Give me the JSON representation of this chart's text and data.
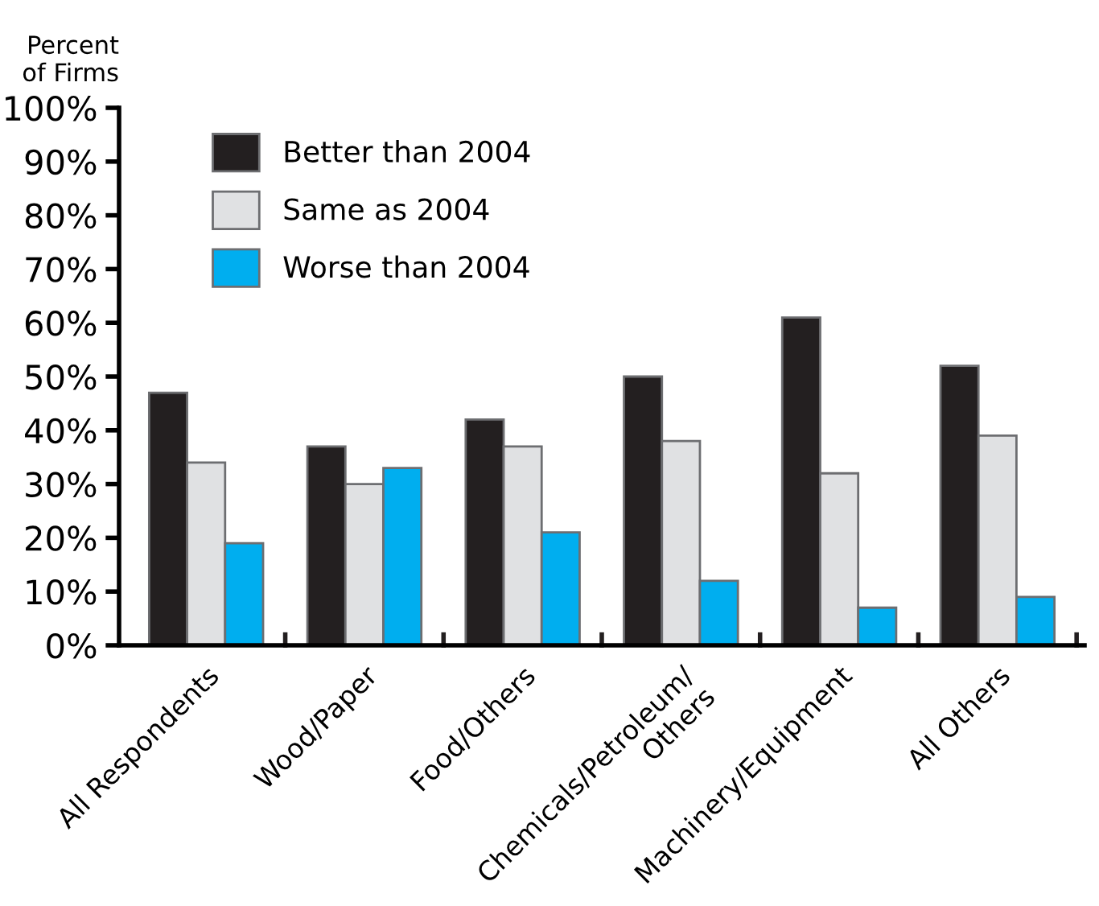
{
  "chart_data": {
    "type": "bar",
    "ylabel": "Percent\nof Firms",
    "categories": [
      "All Respondents",
      "Wood/Paper",
      "Food/Others",
      "Chemicals/Petroleum/\nOthers",
      "Machinery/Equipment",
      "All Others"
    ],
    "series": [
      {
        "name": "Better than 2004",
        "color": "#231f20",
        "values": [
          47,
          37,
          42,
          50,
          61,
          52
        ]
      },
      {
        "name": "Same as 2004",
        "color": "#e0e1e3",
        "values": [
          34,
          30,
          37,
          38,
          32,
          39
        ]
      },
      {
        "name": "Worse than 2004",
        "color": "#00aeef",
        "values": [
          19,
          33,
          21,
          12,
          7,
          9
        ]
      }
    ],
    "ylim": [
      0,
      100
    ],
    "yticks": [
      {
        "value": 0,
        "label": "0%"
      },
      {
        "value": 10,
        "label": "10%"
      },
      {
        "value": 20,
        "label": "20%"
      },
      {
        "value": 30,
        "label": "30%"
      },
      {
        "value": 40,
        "label": "40%"
      },
      {
        "value": 50,
        "label": "50%"
      },
      {
        "value": 60,
        "label": "60%"
      },
      {
        "value": 70,
        "label": "70%"
      },
      {
        "value": 80,
        "label": "80%"
      },
      {
        "value": 90,
        "label": "90%"
      },
      {
        "value": 100,
        "label": "100%"
      }
    ],
    "grid": false,
    "legend": "top left"
  }
}
